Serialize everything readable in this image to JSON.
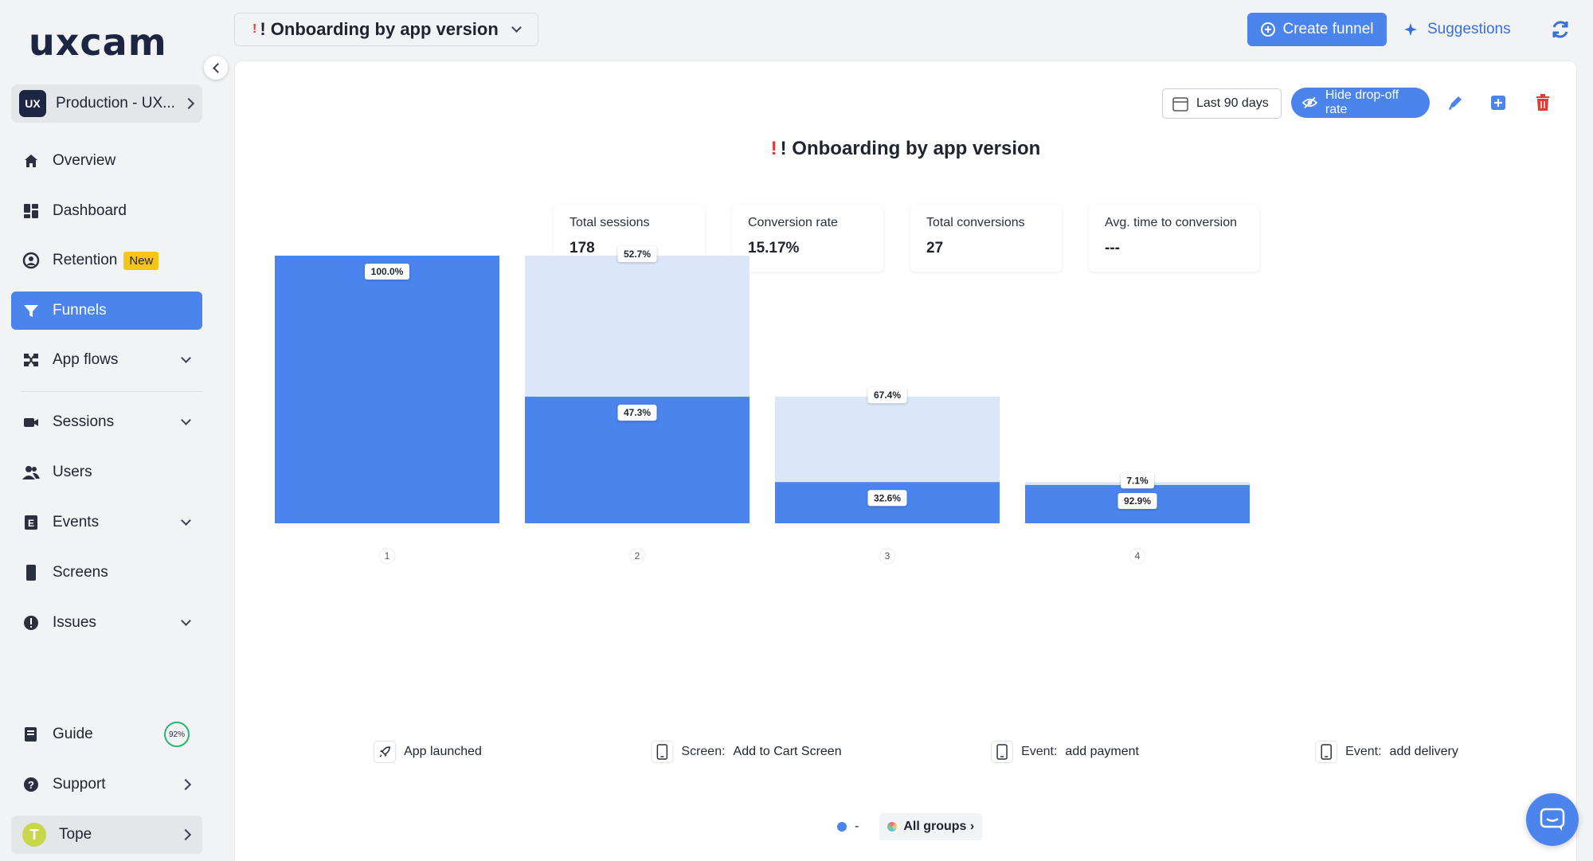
{
  "brand": {
    "logo_text": "uxcam"
  },
  "project": {
    "badge": "UX",
    "name": "Production - UX..."
  },
  "sidebar": {
    "items": [
      {
        "label": "Overview",
        "icon": "home-icon"
      },
      {
        "label": "Dashboard",
        "icon": "dashboard-icon"
      },
      {
        "label": "Retention",
        "icon": "retention-icon",
        "badge": "New"
      },
      {
        "label": "Funnels",
        "icon": "funnel-icon",
        "active": true
      },
      {
        "label": "App flows",
        "icon": "app-flows-icon",
        "expandable": true
      },
      {
        "label": "Sessions",
        "icon": "video-icon",
        "expandable": true
      },
      {
        "label": "Users",
        "icon": "users-icon"
      },
      {
        "label": "Events",
        "icon": "events-icon",
        "expandable": true
      },
      {
        "label": "Screens",
        "icon": "phone-icon"
      },
      {
        "label": "Issues",
        "icon": "alert-icon",
        "expandable": true
      }
    ],
    "bottom": {
      "guide": {
        "label": "Guide",
        "progress": "92%"
      },
      "support": {
        "label": "Support"
      },
      "user": {
        "label": "Tope",
        "avatar_letter": "T"
      }
    }
  },
  "topbar": {
    "funnel_selector": "! Onboarding by app version",
    "create_funnel": "Create funnel",
    "suggestions": "Suggestions"
  },
  "toolbar": {
    "date_range": "Last 90 days",
    "hide_dropoff": "Hide drop-off rate"
  },
  "funnel": {
    "title": "! Onboarding by app version",
    "stats": [
      {
        "label": "Total sessions",
        "value": "178"
      },
      {
        "label": "Conversion rate",
        "value": "15.17%"
      },
      {
        "label": "Total conversions",
        "value": "27"
      },
      {
        "label": "Avg. time to conversion",
        "value": "---"
      }
    ]
  },
  "colors": {
    "accent": "#4a84ec",
    "dropoff": "#dce6f9",
    "alert": "#e53935"
  },
  "chart_data": {
    "type": "bar",
    "categories": [
      "1",
      "2",
      "3",
      "4"
    ],
    "step_labels": [
      {
        "prefix": "",
        "name": "App launched",
        "icon": "rocket-icon"
      },
      {
        "prefix": "Screen:",
        "name": "Add to Cart Screen",
        "icon": "phone-icon"
      },
      {
        "prefix": "Event:",
        "name": "add payment",
        "icon": "phone-icon"
      },
      {
        "prefix": "Event:",
        "name": "add delivery",
        "icon": "phone-icon"
      }
    ],
    "series": [
      {
        "values": [
          100.0,
          47.3,
          32.6,
          92.9
        ],
        "value_labels": [
          "100.0%",
          "47.3%",
          "32.6%",
          "92.9%"
        ]
      },
      {
        "values": [
          null,
          52.7,
          67.4,
          7.1
        ],
        "value_labels": [
          null,
          "52.7%",
          "67.4%",
          "7.1%"
        ]
      }
    ],
    "relative_fill": [
      1.0,
      0.473,
      0.154,
      0.143
    ],
    "relative_top": [
      1.0,
      1.0,
      0.473,
      0.154
    ],
    "ylim": [
      0,
      1
    ]
  },
  "legend": {
    "series_name": "-",
    "groups": "All groups ›"
  }
}
